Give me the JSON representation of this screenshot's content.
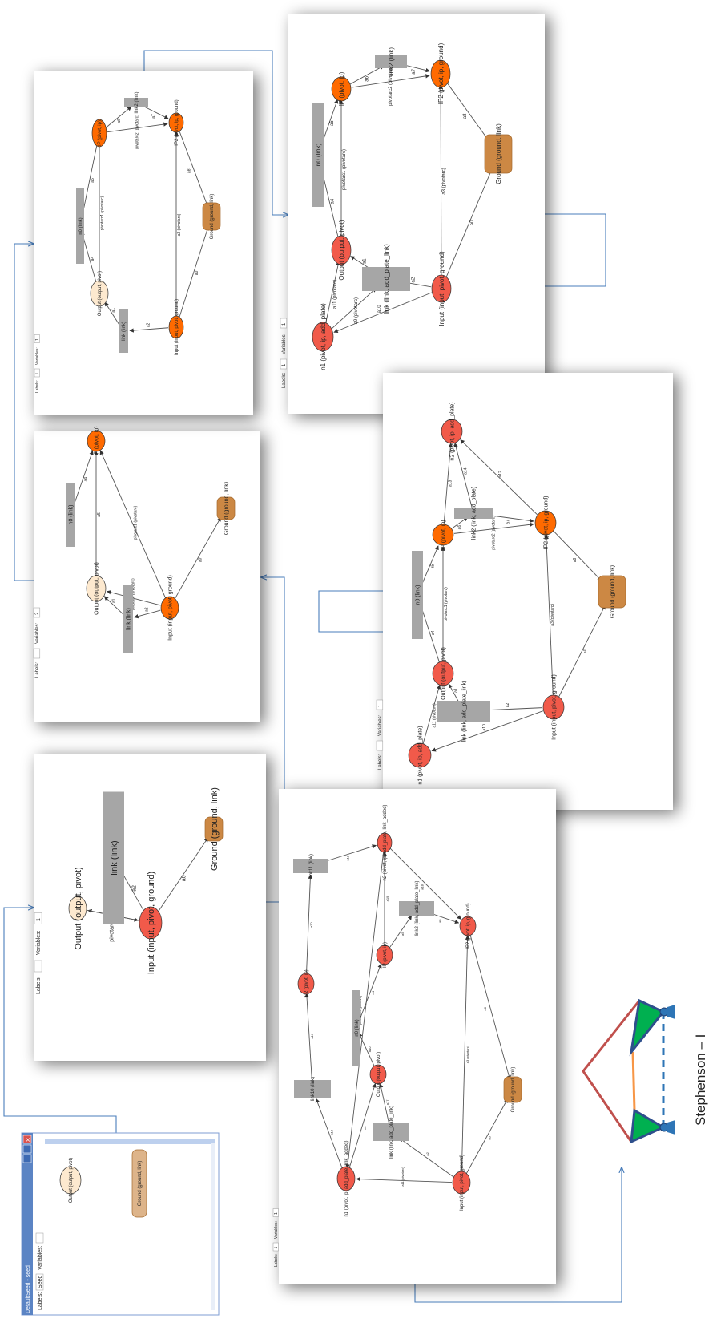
{
  "window": {
    "title": "DefaultSeed - seed",
    "labels_text": "Labels:",
    "labels_value": "Seed",
    "variables_text": "Variables:",
    "variables_value": ""
  },
  "caption": "Stephenson – I",
  "colors": {
    "red_node": "#f15a4a",
    "orange_node": "#ff6a00",
    "cream_node": "#fde9cf",
    "ground_node": "#cc8844",
    "link_rect": "#a6a6a6",
    "connector": "#4a7ebb",
    "mech_green": "#00b050",
    "mech_blue": "#2e4f8c",
    "mech_red": "#c0504d",
    "mech_orange": "#f79646"
  },
  "panels": [
    {
      "id": "p0",
      "labels_text": "Labels:",
      "labels_value": "Seed",
      "variables_text": "Variables:",
      "variables_value": "",
      "nodes": [
        {
          "label": "Output (output, pivot)",
          "type": "cream"
        },
        {
          "label": "Ground (ground, link)",
          "type": "ground_soft"
        }
      ],
      "edges": []
    },
    {
      "id": "p1",
      "labels_text": "Labels:",
      "labels_value": "",
      "variables_text": "Variables:",
      "variables_value": "1",
      "nodes": [
        {
          "label": "Output (output, pivot)",
          "type": "cream"
        },
        {
          "label": "link (link)",
          "type": "rect"
        },
        {
          "label": "Input (input, pivot, ground)",
          "type": "red"
        },
        {
          "label": "Ground (ground, link)",
          "type": "ground"
        }
      ],
      "edges": [
        {
          "label": "a1"
        },
        {
          "label": "a2"
        },
        {
          "label": "a0"
        },
        {
          "label": "pivotarc (pivotarc)"
        }
      ]
    },
    {
      "id": "p2",
      "labels_text": "Labels:",
      "labels_value": "",
      "variables_text": "Variables:",
      "variables_value": "2",
      "nodes": [
        {
          "label": "IP (pivot, ip)",
          "type": "orange"
        },
        {
          "label": "n0 (link)",
          "type": "rect"
        },
        {
          "label": "Output (output, pivot)",
          "type": "cream"
        },
        {
          "label": "link (link)",
          "type": "rect"
        },
        {
          "label": "Input (input, pivot, ground)",
          "type": "orange"
        },
        {
          "label": "Ground (ground, link)",
          "type": "ground"
        }
      ],
      "edges": [
        {
          "label": "a5"
        },
        {
          "label": "a4"
        },
        {
          "label": "a1"
        },
        {
          "label": "a2"
        },
        {
          "label": "a0"
        },
        {
          "label": "pivotarc1 (pivotarc)"
        },
        {
          "label": "pivotarc (pivotarc)"
        }
      ]
    },
    {
      "id": "p3",
      "labels_text": "Labels:",
      "labels_value": "1",
      "variables_text": "Variables:",
      "variables_value": "1",
      "nodes": [
        {
          "label": "IP (pivot, ip)",
          "type": "orange"
        },
        {
          "label": "link2 (link)",
          "type": "rect"
        },
        {
          "label": "IP2 (pivot, ip, ground)",
          "type": "orange"
        },
        {
          "label": "n0 (link)",
          "type": "rect"
        },
        {
          "label": "Ground (ground, link)",
          "type": "ground"
        },
        {
          "label": "Output (output, pivot)",
          "type": "cream"
        },
        {
          "label": "link (link)",
          "type": "rect"
        },
        {
          "label": "Input (input, pivot, ground)",
          "type": "orange"
        }
      ],
      "edges": [
        {
          "label": "a6"
        },
        {
          "label": "a7"
        },
        {
          "label": "a5"
        },
        {
          "label": "a8"
        },
        {
          "label": "a4"
        },
        {
          "label": "a1"
        },
        {
          "label": "a2"
        },
        {
          "label": "a0"
        },
        {
          "label": "a3 (pivotarc)"
        },
        {
          "label": "pivotarc1 (pivotarc)"
        },
        {
          "label": "pivotarc2 (pivotarc)"
        }
      ]
    },
    {
      "id": "p4",
      "labels_text": "Labels:",
      "labels_value": "1",
      "variables_text": "Variables:",
      "variables_value": "1",
      "nodes": [
        {
          "label": "IP (pivot, ip)",
          "type": "orange"
        },
        {
          "label": "link2 (link)",
          "type": "rect"
        },
        {
          "label": "IP2 (pivot, ip, ground)",
          "type": "orange"
        },
        {
          "label": "n0 (link)",
          "type": "rect"
        },
        {
          "label": "Ground (ground, link)",
          "type": "ground"
        },
        {
          "label": "Output (output, pivot)",
          "type": "red"
        },
        {
          "label": "link (link, add_plate_link)",
          "type": "rect"
        },
        {
          "label": "Input (input, pivot, ground)",
          "type": "red"
        },
        {
          "label": "n1 (pivot, ip, add_plate)",
          "type": "red"
        }
      ],
      "edges": [
        {
          "label": "a6"
        },
        {
          "label": "a7"
        },
        {
          "label": "a5"
        },
        {
          "label": "a8"
        },
        {
          "label": "a4"
        },
        {
          "label": "a1"
        },
        {
          "label": "a2"
        },
        {
          "label": "a0"
        },
        {
          "label": "a10"
        },
        {
          "label": "a11 (pivotarc)"
        },
        {
          "label": "a3 (pivotarc)"
        },
        {
          "label": "pivotarc1 (pivotarc)"
        },
        {
          "label": "pivotarc2 (pivotarc)"
        },
        {
          "label": "a9 (pivotarc)"
        }
      ]
    },
    {
      "id": "p5",
      "labels_text": "Labels:",
      "labels_value": "",
      "variables_text": "Variables:",
      "variables_value": "1",
      "nodes": [
        {
          "label": "n2 (pivot, ip, add_plate)",
          "type": "red"
        },
        {
          "label": "IP (pivot, ip)",
          "type": "orange"
        },
        {
          "label": "link2 (link, add_plate)",
          "type": "rect"
        },
        {
          "label": "IP2 (pivot, ip, ground)",
          "type": "orange"
        },
        {
          "label": "n0 (link)",
          "type": "rect"
        },
        {
          "label": "Ground (ground, link)",
          "type": "ground"
        },
        {
          "label": "Output (output, pivot)",
          "type": "red"
        },
        {
          "label": "link (link, add_plate_link)",
          "type": "rect"
        },
        {
          "label": "Input (input, pivot, ground)",
          "type": "red"
        },
        {
          "label": "n1 (pivot, ip, add_plate)",
          "type": "red"
        }
      ],
      "edges": [
        {
          "label": "a13"
        },
        {
          "label": "a14"
        },
        {
          "label": "a12"
        },
        {
          "label": "a6"
        },
        {
          "label": "a7"
        },
        {
          "label": "a5"
        },
        {
          "label": "a8"
        },
        {
          "label": "a4"
        },
        {
          "label": "a1"
        },
        {
          "label": "a2"
        },
        {
          "label": "a0"
        },
        {
          "label": "a10"
        },
        {
          "label": "a11 (pivotarc)"
        },
        {
          "label": "a3 (pivotarc)"
        },
        {
          "label": "pivotarc1 (pivotarc)"
        },
        {
          "label": "pivotarc2 (pivotarc)"
        }
      ]
    },
    {
      "id": "p6",
      "labels_text": "Labels:",
      "labels_value": "1",
      "variables_text": "Variables:",
      "variables_value": "1",
      "nodes": [
        {
          "label": "n2 (pivot, ip, add_plate, link_added)",
          "type": "red"
        },
        {
          "label": "link11 (link)",
          "type": "rect"
        },
        {
          "label": "IP2 (pivot, ip)",
          "type": "red"
        },
        {
          "label": "link2 (link, add_plate_link)",
          "type": "rect"
        },
        {
          "label": "IP (pivot, ip)",
          "type": "red"
        },
        {
          "label": "IP2 (pivot, ip, ground)",
          "type": "red"
        },
        {
          "label": "n0 (link)",
          "type": "rect"
        },
        {
          "label": "link10 (link)",
          "type": "rect"
        },
        {
          "label": "Output (output, pivot)",
          "type": "red"
        },
        {
          "label": "Ground (ground, link)",
          "type": "ground"
        },
        {
          "label": "link (link, add_plate_link)",
          "type": "rect"
        },
        {
          "label": "n1 (pivot, ip, add_plate, link_added)",
          "type": "red"
        },
        {
          "label": "Input (input, pivot, ground)",
          "type": "red"
        }
      ],
      "edges": [
        {
          "label": "a20"
        },
        {
          "label": "a12"
        },
        {
          "label": "a18"
        },
        {
          "label": "a19"
        },
        {
          "label": "a15"
        },
        {
          "label": "a16"
        },
        {
          "label": "a17"
        },
        {
          "label": "a6"
        },
        {
          "label": "a5"
        },
        {
          "label": "a8"
        },
        {
          "label": "a4"
        },
        {
          "label": "a10"
        },
        {
          "label": "a1"
        },
        {
          "label": "a2"
        },
        {
          "label": "a0"
        },
        {
          "label": "a3 (pivotarc)"
        },
        {
          "label": "a11 (pivotarc)"
        },
        {
          "label": "pivotarc20 (pivotarc)"
        }
      ]
    }
  ]
}
